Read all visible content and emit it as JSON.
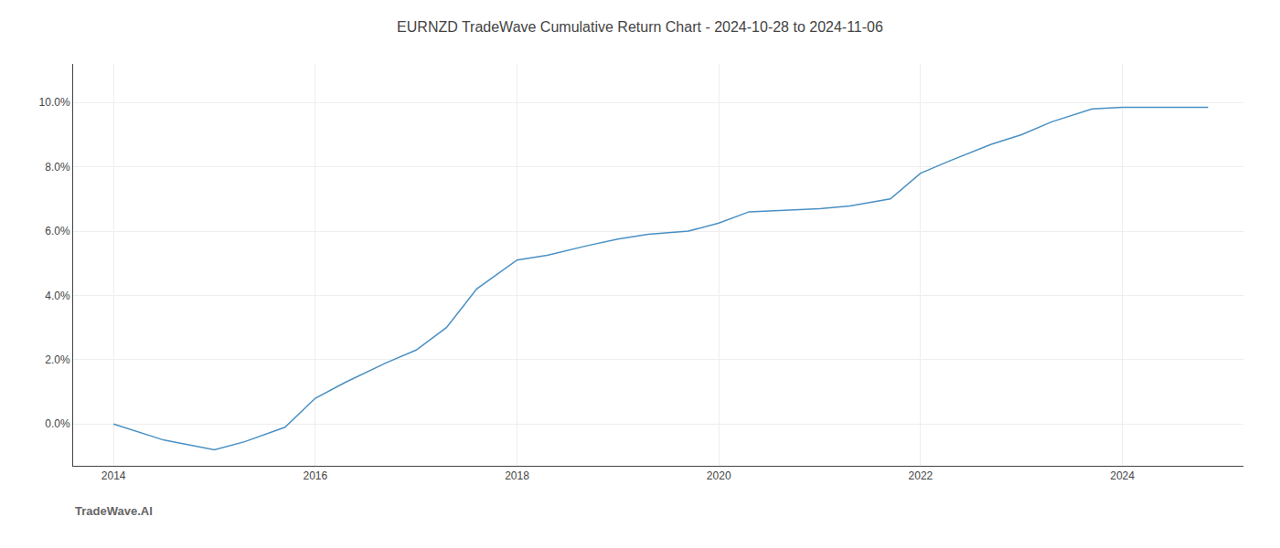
{
  "chart_data": {
    "type": "line",
    "title": "EURNZD TradeWave Cumulative Return Chart - 2024-10-28 to 2024-11-06",
    "annotations": [
      "TradeWave.AI"
    ],
    "x": [
      2014.0,
      2014.5,
      2015.0,
      2015.3,
      2015.7,
      2016.0,
      2016.3,
      2016.7,
      2017.0,
      2017.3,
      2017.6,
      2018.0,
      2018.3,
      2018.7,
      2019.0,
      2019.3,
      2019.7,
      2020.0,
      2020.3,
      2020.6,
      2021.0,
      2021.3,
      2021.7,
      2022.0,
      2022.3,
      2022.7,
      2023.0,
      2023.3,
      2023.7,
      2024.0,
      2024.5,
      2024.85
    ],
    "values": [
      0.0,
      -0.5,
      -0.8,
      -0.55,
      -0.1,
      0.8,
      1.3,
      1.9,
      2.3,
      3.0,
      4.2,
      5.1,
      5.25,
      5.55,
      5.75,
      5.9,
      6.0,
      6.25,
      6.6,
      6.65,
      6.7,
      6.78,
      7.0,
      7.8,
      8.2,
      8.7,
      9.0,
      9.4,
      9.8,
      9.85,
      9.85,
      9.85
    ],
    "color": "#4a90c4",
    "xlim": [
      2013.6,
      2025.2
    ],
    "ylim": [
      -1.3,
      11.2
    ],
    "xticks": [
      2014,
      2016,
      2018,
      2020,
      2022,
      2024
    ],
    "yticks": [
      {
        "value": 0.0,
        "label": "0.0%"
      },
      {
        "value": 2.0,
        "label": "2.0%"
      },
      {
        "value": 4.0,
        "label": "4.0%"
      },
      {
        "value": 6.0,
        "label": "6.0%"
      },
      {
        "value": 8.0,
        "label": "8.0%"
      },
      {
        "value": 10.0,
        "label": "10.0%"
      }
    ],
    "grid": true
  }
}
